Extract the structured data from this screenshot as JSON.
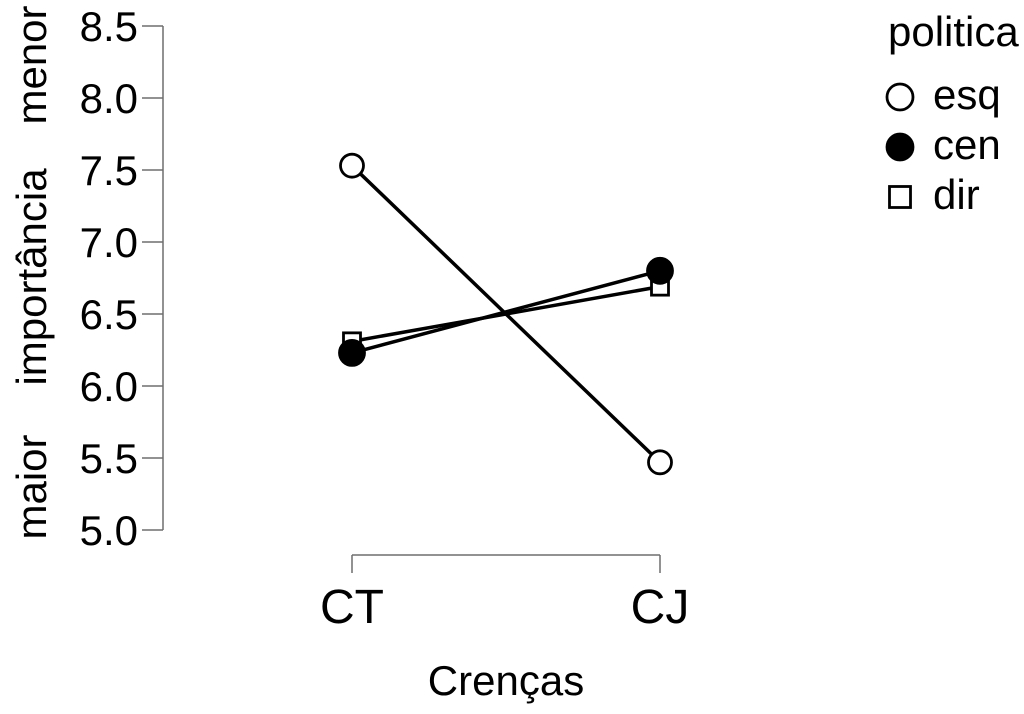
{
  "figure": {
    "background": "#ffffff"
  },
  "chart_data": {
    "type": "line",
    "title": "",
    "xlabel": "Crenças",
    "ylabel": "maior importância menor",
    "ylabel_words_top_down": [
      "menor",
      "importância",
      "maior"
    ],
    "categories": [
      "CT",
      "CJ"
    ],
    "series": [
      {
        "name": "esq",
        "marker": "open-circle",
        "values": [
          7.53,
          5.47
        ]
      },
      {
        "name": "cen",
        "marker": "filled-circle",
        "values": [
          6.23,
          6.8
        ]
      },
      {
        "name": "dir",
        "marker": "open-square",
        "values": [
          6.31,
          6.69
        ]
      }
    ],
    "legend": {
      "title": "politica",
      "position": "top-right",
      "items": [
        "esq",
        "cen",
        "dir"
      ]
    },
    "ylim": [
      5.0,
      8.5
    ],
    "yticks": [
      "5.0",
      "5.5",
      "6.0",
      "6.5",
      "7.0",
      "7.5",
      "8.0",
      "8.5"
    ],
    "grid": false,
    "line_color": "#000000",
    "marker_fill_open": "#ffffff",
    "axis_color": "#6e6e6e",
    "text_color": "#000000"
  }
}
